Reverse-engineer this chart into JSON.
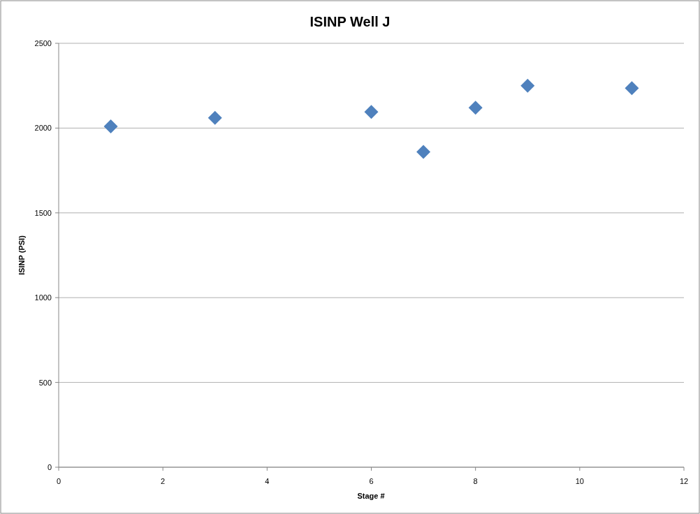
{
  "chart_data": {
    "type": "scatter",
    "title": "ISINP Well J",
    "xlabel": "Stage #",
    "ylabel": "ISINP (PSI)",
    "x": [
      1,
      3,
      6,
      7,
      8,
      9,
      11
    ],
    "series": [
      {
        "color": "#4f81bd",
        "values": [
          2010,
          2060,
          2095,
          1860,
          2120,
          2250,
          2235
        ]
      }
    ],
    "xlim": [
      0,
      12
    ],
    "xticks": [
      0,
      2,
      4,
      6,
      8,
      10,
      12
    ],
    "ylim": [
      0,
      2500
    ],
    "yticks": [
      0,
      500,
      1000,
      1500,
      2000,
      2500
    ],
    "grid": "y",
    "marker": "diamond"
  }
}
